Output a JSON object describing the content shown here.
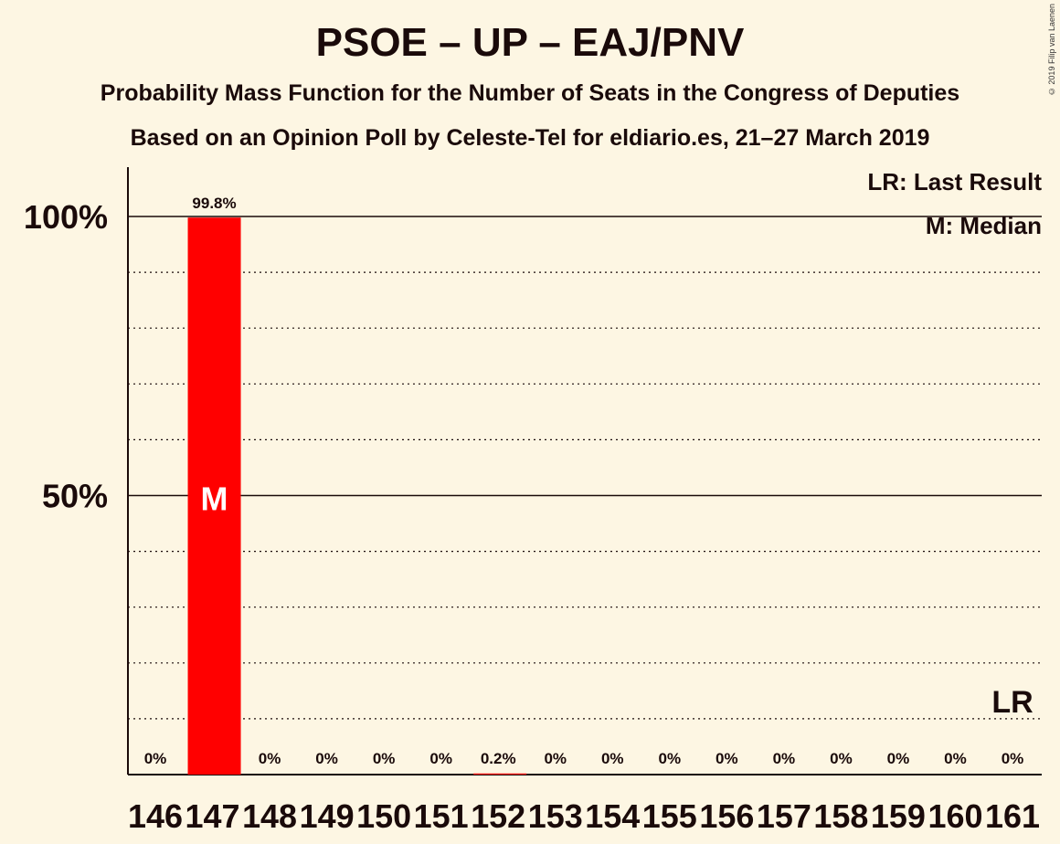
{
  "title": "PSOE – UP – EAJ/PNV",
  "subtitle1": "Probability Mass Function for the Number of Seats in the Congress of Deputies",
  "subtitle2": "Based on an Opinion Poll by Celeste-Tel for eldiario.es, 21–27 March 2019",
  "copyright": "© 2019 Filip van Laenen",
  "legend": {
    "last_result": "LR: Last Result",
    "median": "M: Median"
  },
  "colors": {
    "background": "#fdf6e3",
    "bar": "#ff0000",
    "text": "#1a0a0a"
  },
  "chart_data": {
    "type": "bar",
    "categories": [
      "146",
      "147",
      "148",
      "149",
      "150",
      "151",
      "152",
      "153",
      "154",
      "155",
      "156",
      "157",
      "158",
      "159",
      "160",
      "161"
    ],
    "values": [
      0,
      99.8,
      0,
      0,
      0,
      0,
      0.2,
      0,
      0,
      0,
      0,
      0,
      0,
      0,
      0,
      0
    ],
    "value_labels": [
      "0%",
      "99.8%",
      "0%",
      "0%",
      "0%",
      "0%",
      "0.2%",
      "0%",
      "0%",
      "0%",
      "0%",
      "0%",
      "0%",
      "0%",
      "0%",
      "0%"
    ],
    "ylim": [
      0,
      110
    ],
    "yticks": [
      50,
      100
    ],
    "ytick_labels": [
      "50%",
      "100%"
    ],
    "grid": "dotted every 10%",
    "median_category": "147",
    "median_marker": "M",
    "last_result_category": "161",
    "last_result_marker": "LR"
  }
}
